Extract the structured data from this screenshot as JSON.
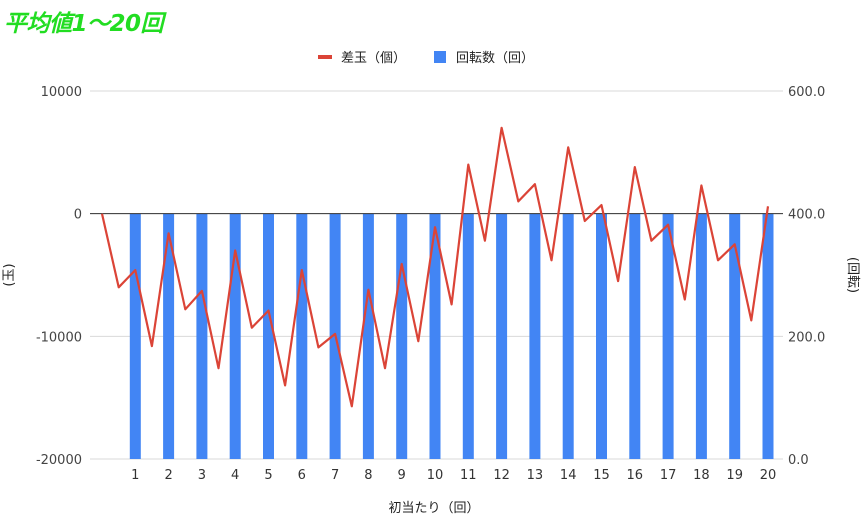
{
  "page_title": "平均値1〜20回",
  "chart_data": {
    "type": "bar+line",
    "legend_position": "top",
    "grid": true,
    "categories": [
      "1",
      "2",
      "3",
      "4",
      "5",
      "6",
      "7",
      "8",
      "9",
      "10",
      "11",
      "12",
      "13",
      "14",
      "15",
      "16",
      "17",
      "18",
      "19",
      "20"
    ],
    "xlabel": "初当たり（回）",
    "ylabel_left": "(玉)",
    "ylabel_right": "(回転)",
    "ylim_left": [
      -20000,
      10000
    ],
    "ylim_right": [
      0,
      600
    ],
    "yticks_left": [
      "10000",
      "0",
      "-10000",
      "-20000"
    ],
    "yticks_right": [
      "600.0",
      "400.0",
      "200.0",
      "0.0"
    ],
    "colors": {
      "line": "#db4437",
      "bar": "#4285f4",
      "title": "#22dd22"
    },
    "series": [
      {
        "name": "差玉（個）",
        "type": "line",
        "axis": "left",
        "x": [
          0,
          0.5,
          1,
          1.5,
          2,
          2.5,
          3,
          3.5,
          4,
          4.5,
          5,
          5.5,
          6,
          6.5,
          7,
          7.5,
          8,
          8.5,
          9,
          9.5,
          10,
          10.5,
          11,
          11.5,
          12,
          12.5,
          13,
          13.5,
          14,
          14.5,
          15,
          15.5,
          16,
          16.5,
          17,
          17.5,
          18,
          18.5,
          19,
          19.5,
          20
        ],
        "values": [
          0,
          -6000,
          -4600,
          -10800,
          -1600,
          -7800,
          -6300,
          -12600,
          -3000,
          -9300,
          -7900,
          -14000,
          -4600,
          -10900,
          -9800,
          -15700,
          -6200,
          -12600,
          -4100,
          -10400,
          -1100,
          -7400,
          4000,
          -2200,
          7000,
          1000,
          2400,
          -3800,
          5400,
          -600,
          700,
          -5500,
          3800,
          -2200,
          -900,
          -7000,
          2300,
          -3800,
          -2500,
          -8700,
          600
        ]
      },
      {
        "name": "回転数（回）",
        "type": "bar",
        "axis": "right",
        "values": [
          400,
          400,
          400,
          400,
          400,
          400,
          400,
          400,
          400,
          400,
          400,
          400,
          400,
          400,
          400,
          400,
          400,
          400,
          400,
          400
        ]
      }
    ]
  }
}
